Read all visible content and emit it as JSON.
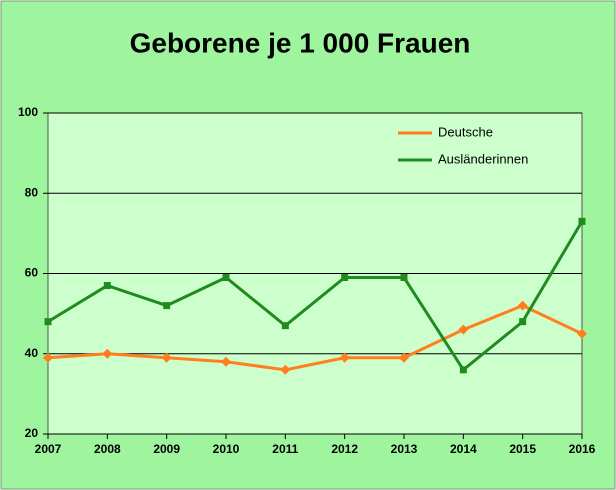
{
  "chart_data": {
    "type": "line",
    "title": "Geborene je 1 000 Frauen",
    "categories": [
      "2007",
      "2008",
      "2009",
      "2010",
      "2011",
      "2012",
      "2013",
      "2014",
      "2015",
      "2016"
    ],
    "series": [
      {
        "name": "Deutsche",
        "color": "#ff7f1e",
        "values": [
          39,
          40,
          39,
          38,
          36,
          39,
          39,
          46,
          52,
          45
        ]
      },
      {
        "name": "Ausländerinnen",
        "color": "#1e8c1e",
        "values": [
          48,
          57,
          52,
          59,
          47,
          59,
          59,
          36,
          48,
          73
        ]
      }
    ],
    "ylim": [
      20,
      100
    ],
    "yticks": [
      20,
      40,
      60,
      80,
      100
    ],
    "grid": true,
    "legend": "top-right"
  }
}
